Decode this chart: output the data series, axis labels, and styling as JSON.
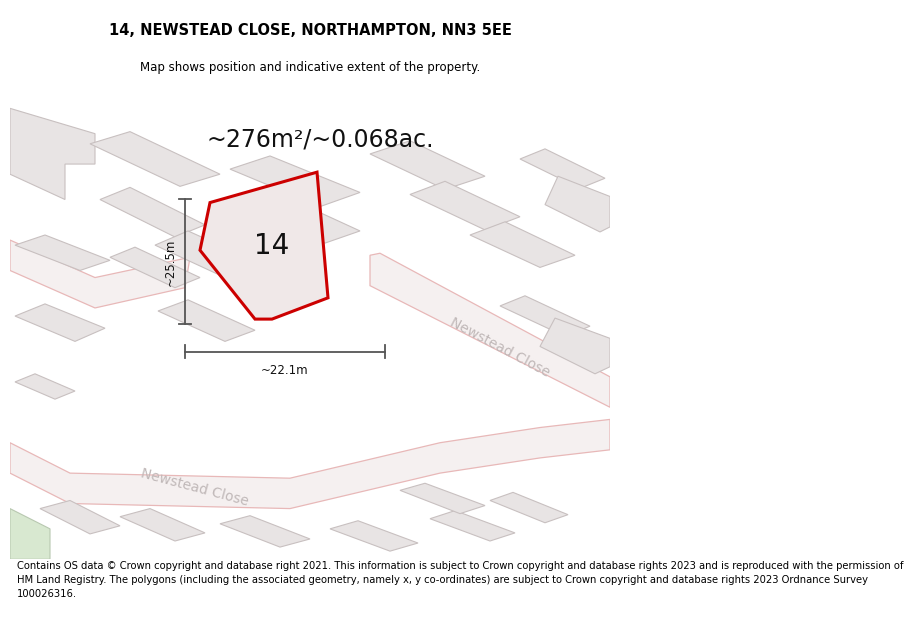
{
  "title": "14, NEWSTEAD CLOSE, NORTHAMPTON, NN3 5EE",
  "subtitle": "Map shows position and indicative extent of the property.",
  "footer": "Contains OS data © Crown copyright and database right 2021. This information is subject to Crown copyright and database rights 2023 and is reproduced with the permission of\nHM Land Registry. The polygons (including the associated geometry, namely x, y co-ordinates) are subject to Crown copyright and database rights 2023 Ordnance Survey\n100026316.",
  "area_label": "~276m²/~0.068ac.",
  "number_label": "14",
  "width_label": "~22.1m",
  "height_label": "~25.5m",
  "map_bg": "#f7f4f4",
  "road_line_color": "#e8b8b8",
  "building_fill": "#e8e4e4",
  "building_edge": "#c8c0c0",
  "property_fill": "#f0e8e8",
  "property_stroke": "#cc0000",
  "street_label_color": "#c0b8b8",
  "dim_color": "#555555",
  "title_fontsize": 10.5,
  "subtitle_fontsize": 8.5,
  "footer_fontsize": 7.2,
  "area_fontsize": 17,
  "number_fontsize": 20,
  "street_fontsize": 10
}
